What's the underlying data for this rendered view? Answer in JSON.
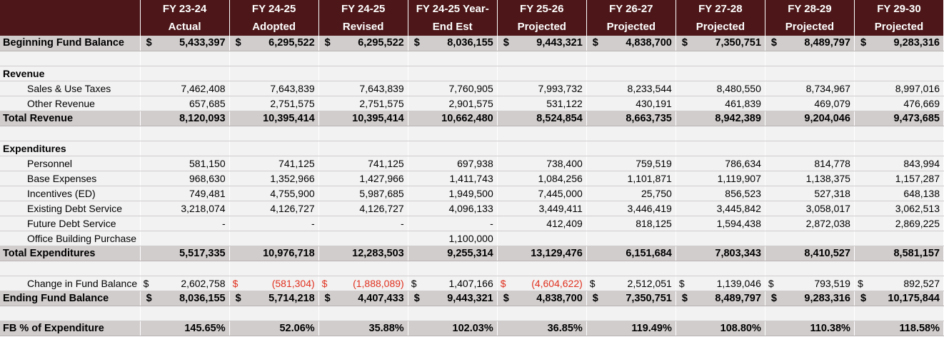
{
  "headers": [
    {
      "line1": "FY 23-24",
      "line2": "Actual"
    },
    {
      "line1": "FY 24-25",
      "line2": "Adopted"
    },
    {
      "line1": "FY 24-25",
      "line2": "Revised"
    },
    {
      "line1": "FY 24-25 Year-",
      "line2": "End Est"
    },
    {
      "line1": "FY 25-26",
      "line2": "Projected"
    },
    {
      "line1": "FY 26-27",
      "line2": "Projected"
    },
    {
      "line1": "FY 27-28",
      "line2": "Projected"
    },
    {
      "line1": "FY 28-29",
      "line2": "Projected"
    },
    {
      "line1": "FY 29-30",
      "line2": "Projected"
    }
  ],
  "rows": [
    {
      "type": "bold",
      "label": "Beginning Fund Balance",
      "currency": [
        true,
        true,
        true,
        true,
        true,
        true,
        true,
        true,
        true
      ],
      "values": [
        "5,433,397",
        "6,295,522",
        "6,295,522",
        "8,036,155",
        "9,443,321",
        "4,838,700",
        "7,350,751",
        "8,489,797",
        "9,283,316"
      ],
      "neg": []
    },
    {
      "type": "blank"
    },
    {
      "type": "section",
      "label": "Revenue"
    },
    {
      "type": "item",
      "label": "Sales & Use Taxes",
      "values": [
        "7,462,408",
        "7,643,839",
        "7,643,839",
        "7,760,905",
        "7,993,732",
        "8,233,544",
        "8,480,550",
        "8,734,967",
        "8,997,016"
      ],
      "neg": []
    },
    {
      "type": "item",
      "label": "Other Revenue",
      "values": [
        "657,685",
        "2,751,575",
        "2,751,575",
        "2,901,575",
        "531,122",
        "430,191",
        "461,839",
        "469,079",
        "476,669"
      ],
      "neg": []
    },
    {
      "type": "bold",
      "label": "Total Revenue",
      "values": [
        "8,120,093",
        "10,395,414",
        "10,395,414",
        "10,662,480",
        "8,524,854",
        "8,663,735",
        "8,942,389",
        "9,204,046",
        "9,473,685"
      ],
      "neg": []
    },
    {
      "type": "blank"
    },
    {
      "type": "section",
      "label": "Expenditures"
    },
    {
      "type": "item",
      "label": "Personnel",
      "values": [
        "581,150",
        "741,125",
        "741,125",
        "697,938",
        "738,400",
        "759,519",
        "786,634",
        "814,778",
        "843,994"
      ],
      "neg": []
    },
    {
      "type": "item",
      "label": "Base Expenses",
      "values": [
        "968,630",
        "1,352,966",
        "1,427,966",
        "1,411,743",
        "1,084,256",
        "1,101,871",
        "1,119,907",
        "1,138,375",
        "1,157,287"
      ],
      "neg": []
    },
    {
      "type": "item",
      "label": "Incentives (ED)",
      "values": [
        "749,481",
        "4,755,900",
        "5,987,685",
        "1,949,500",
        "7,445,000",
        "25,750",
        "856,523",
        "527,318",
        "648,138"
      ],
      "neg": []
    },
    {
      "type": "item",
      "label": "Existing Debt Service",
      "values": [
        "3,218,074",
        "4,126,727",
        "4,126,727",
        "4,096,133",
        "3,449,411",
        "3,446,419",
        "3,445,842",
        "3,058,017",
        "3,062,513"
      ],
      "neg": []
    },
    {
      "type": "item",
      "label": "Future Debt Service",
      "values": [
        "-",
        "-",
        "-",
        "-",
        "412,409",
        "818,125",
        "1,594,438",
        "2,872,038",
        "2,869,225"
      ],
      "neg": []
    },
    {
      "type": "item",
      "label": "Office Building Purchase",
      "values": [
        "",
        "",
        "",
        "1,100,000",
        "",
        "",
        "",
        "",
        ""
      ],
      "neg": []
    },
    {
      "type": "bold",
      "label": "Total Expenditures",
      "values": [
        "5,517,335",
        "10,976,718",
        "12,283,503",
        "9,255,314",
        "13,129,476",
        "6,151,684",
        "7,803,343",
        "8,410,527",
        "8,581,157"
      ],
      "neg": []
    },
    {
      "type": "blank"
    },
    {
      "type": "item",
      "label": "Change in Fund Balance",
      "currency": [
        true,
        true,
        true,
        true,
        true,
        true,
        true,
        true,
        true
      ],
      "values": [
        "2,602,758",
        "(581,304)",
        "(1,888,089)",
        "1,407,166",
        "(4,604,622)",
        "2,512,051",
        "1,139,046",
        "793,519",
        "892,527"
      ],
      "neg": [
        1,
        2,
        4
      ]
    },
    {
      "type": "bold",
      "label": "Ending Fund Balance",
      "currency": [
        true,
        true,
        true,
        true,
        true,
        true,
        true,
        true,
        true
      ],
      "values": [
        "8,036,155",
        "5,714,218",
        "4,407,433",
        "9,443,321",
        "4,838,700",
        "7,350,751",
        "8,489,797",
        "9,283,316",
        "10,175,844"
      ],
      "neg": []
    },
    {
      "type": "blank"
    },
    {
      "type": "bold",
      "label": "FB % of Expenditure",
      "values": [
        "145.65%",
        "52.06%",
        "35.88%",
        "102.03%",
        "36.85%",
        "119.49%",
        "108.80%",
        "110.38%",
        "118.58%"
      ],
      "neg": []
    }
  ],
  "currency_symbol": "$",
  "colors": {
    "header_bg": "#4d1719",
    "header_text": "#ffffff",
    "bold_row_bg": "#d2cdcd",
    "row_bg": "#f2f2f2",
    "negative": "#e0301e"
  }
}
